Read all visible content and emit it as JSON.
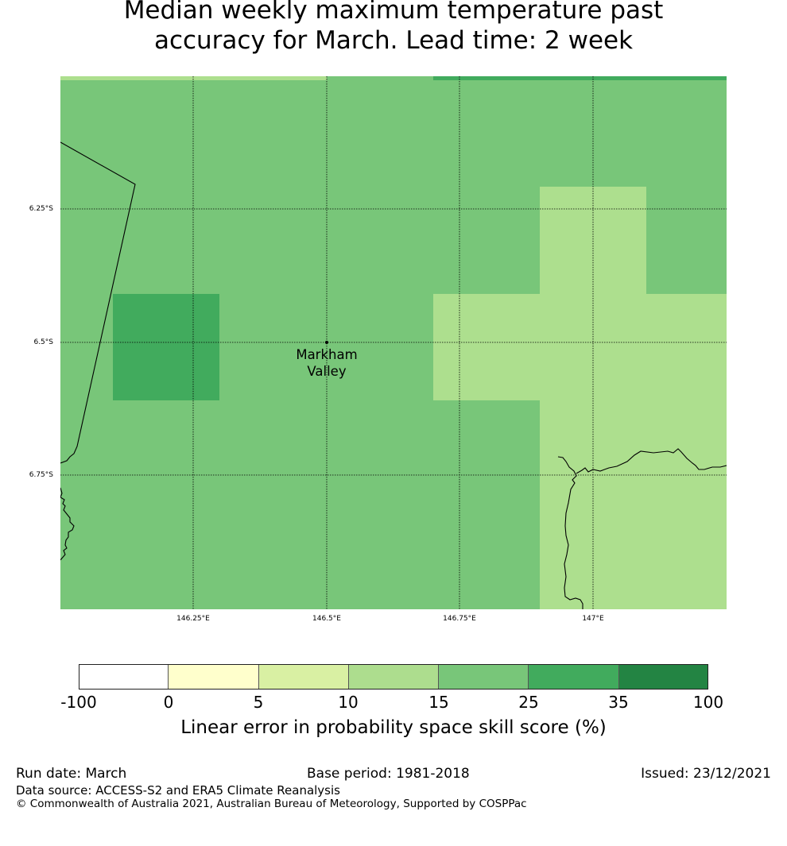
{
  "title": {
    "line1": "Median weekly maximum temperature past",
    "line2": "accuracy for March. Lead time: 2 week"
  },
  "map": {
    "lat_labels": [
      "6.25°S",
      "6.5°S",
      "6.75°S"
    ],
    "lon_labels": [
      "146.25°E",
      "146.5°E",
      "146.75°E",
      "147°E"
    ],
    "place": {
      "line1": "Markham",
      "line2": "Valley"
    },
    "colors": {
      "class_10_15": "#addf8e",
      "class_15_25": "#78c679",
      "class_25_35": "#41ab5d",
      "coastline": "#000000",
      "gridline": "#000000"
    }
  },
  "legend": {
    "colors": [
      "#ffffff",
      "#ffffcc",
      "#d9f0a3",
      "#addd8e",
      "#78c679",
      "#41ab5d",
      "#238443"
    ],
    "ticks": [
      "-100",
      "0",
      "5",
      "10",
      "15",
      "25",
      "35",
      "100"
    ],
    "label": "Linear error in probability space skill score (%)"
  },
  "footer": {
    "run_date": "Run date: March",
    "base_period": "Base period: 1981-2018",
    "issued": "Issued: 23/12/2021",
    "data_source": "Data source: ACCESS-S2 and ERA5 Climate Reanalysis",
    "copyright": "© Commonwealth of Australia 2021, Australian Bureau of Meteorology, Supported by COSPPac"
  }
}
